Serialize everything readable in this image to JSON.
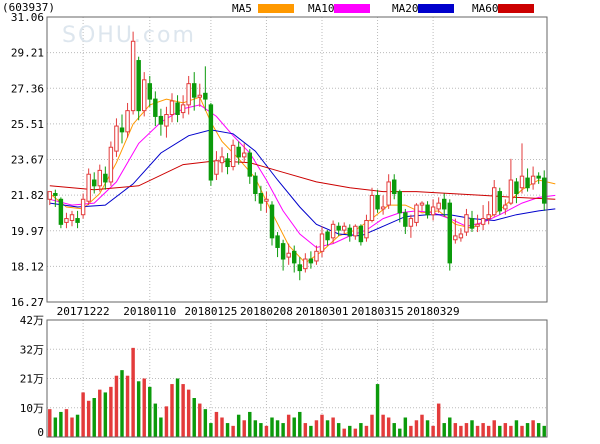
{
  "chart_data": {
    "type": "candlestick",
    "code_label": "(603937)",
    "watermark": "SOHU.com",
    "legend": [
      {
        "name": "MA5",
        "color": "#ff9900"
      },
      {
        "name": "MA10",
        "color": "#ff00ff"
      },
      {
        "name": "MA20",
        "color": "#0000cc"
      },
      {
        "name": "MA60",
        "color": "#cc0000"
      }
    ],
    "colors": {
      "up": "#e33b3b",
      "down": "#0b9a0b"
    },
    "price_ticks": [
      "31.06",
      "29.21",
      "27.36",
      "25.51",
      "23.67",
      "21.82",
      "19.97",
      "18.12",
      "16.27"
    ],
    "ylim": [
      16.27,
      31.06
    ],
    "x_ticks": [
      {
        "label": "20171222",
        "index": 6
      },
      {
        "label": "20180110",
        "index": 18
      },
      {
        "label": "20180125",
        "index": 29
      },
      {
        "label": "20180208",
        "index": 39
      },
      {
        "label": "20180301",
        "index": 49
      },
      {
        "label": "20180315",
        "index": 59
      },
      {
        "label": "20180329",
        "index": 69
      }
    ],
    "volume_ticks": [
      "42万",
      "32万",
      "21万",
      "10万",
      "0"
    ],
    "volume_max": 42,
    "candles": [
      [
        21.6,
        22.0,
        21.3,
        21.9
      ],
      [
        21.9,
        21.8,
        21.2,
        22.1
      ],
      [
        21.6,
        20.3,
        20.1,
        21.7
      ],
      [
        20.4,
        20.6,
        20.1,
        20.9
      ],
      [
        20.5,
        20.8,
        20.2,
        21.0
      ],
      [
        20.6,
        20.4,
        20.1,
        21.0
      ],
      [
        20.8,
        21.6,
        20.6,
        21.9
      ],
      [
        21.5,
        22.9,
        21.3,
        23.2
      ],
      [
        22.6,
        22.3,
        21.9,
        23.0
      ],
      [
        22.3,
        23.1,
        22.0,
        23.4
      ],
      [
        22.9,
        22.5,
        22.1,
        23.3
      ],
      [
        22.5,
        24.3,
        22.3,
        24.6
      ],
      [
        24.1,
        25.4,
        23.8,
        25.8
      ],
      [
        25.3,
        25.1,
        24.5,
        26.0
      ],
      [
        25.1,
        26.2,
        24.8,
        26.6
      ],
      [
        26.2,
        29.8,
        26.0,
        30.3
      ],
      [
        28.8,
        26.2,
        25.7,
        29.0
      ],
      [
        26.2,
        27.8,
        25.9,
        28.2
      ],
      [
        27.6,
        26.8,
        26.4,
        28.0
      ],
      [
        26.8,
        25.9,
        25.4,
        27.2
      ],
      [
        25.9,
        25.5,
        24.9,
        26.3
      ],
      [
        25.4,
        26.0,
        24.8,
        26.4
      ],
      [
        26.0,
        26.7,
        25.6,
        27.1
      ],
      [
        26.6,
        26.0,
        25.6,
        27.0
      ],
      [
        26.1,
        26.5,
        25.8,
        27.0
      ],
      [
        26.5,
        27.6,
        26.0,
        28.0
      ],
      [
        27.6,
        26.9,
        26.2,
        28.2
      ],
      [
        26.9,
        27.0,
        26.4,
        27.6
      ],
      [
        27.1,
        26.8,
        26.2,
        28.5
      ],
      [
        26.5,
        22.6,
        22.3,
        26.6
      ],
      [
        22.9,
        23.6,
        22.6,
        24.1
      ],
      [
        23.5,
        23.8,
        23.0,
        24.3
      ],
      [
        23.7,
        23.3,
        22.9,
        24.0
      ],
      [
        23.3,
        24.4,
        23.1,
        24.7
      ],
      [
        24.3,
        23.8,
        23.4,
        24.6
      ],
      [
        23.8,
        24.0,
        23.5,
        24.5
      ],
      [
        24.0,
        22.8,
        22.4,
        24.2
      ],
      [
        22.8,
        21.9,
        21.5,
        23.0
      ],
      [
        21.9,
        21.4,
        21.0,
        22.3
      ],
      [
        21.5,
        21.6,
        20.9,
        22.0
      ],
      [
        21.3,
        19.6,
        19.2,
        21.5
      ],
      [
        19.7,
        19.1,
        18.6,
        19.9
      ],
      [
        19.3,
        18.5,
        17.9,
        19.5
      ],
      [
        18.6,
        18.8,
        18.2,
        19.3
      ],
      [
        18.9,
        18.3,
        17.8,
        19.2
      ],
      [
        18.2,
        17.9,
        17.4,
        18.6
      ],
      [
        18.0,
        18.5,
        17.8,
        18.8
      ],
      [
        18.5,
        18.3,
        18.0,
        18.9
      ],
      [
        18.4,
        18.9,
        18.2,
        19.2
      ],
      [
        18.9,
        19.8,
        18.6,
        20.2
      ],
      [
        19.9,
        19.5,
        19.2,
        20.0
      ],
      [
        19.6,
        20.3,
        19.3,
        20.5
      ],
      [
        20.2,
        20.0,
        19.7,
        20.4
      ],
      [
        20.0,
        20.2,
        19.8,
        20.4
      ],
      [
        20.1,
        19.7,
        19.4,
        20.3
      ],
      [
        19.7,
        20.2,
        19.5,
        20.3
      ],
      [
        20.2,
        19.4,
        19.2,
        20.3
      ],
      [
        19.6,
        20.5,
        19.4,
        20.8
      ],
      [
        20.5,
        21.8,
        20.4,
        22.2
      ],
      [
        21.8,
        21.1,
        20.9,
        22.1
      ],
      [
        21.1,
        21.2,
        20.8,
        21.8
      ],
      [
        21.3,
        22.5,
        21.1,
        22.9
      ],
      [
        22.6,
        21.9,
        21.6,
        22.9
      ],
      [
        22.0,
        20.9,
        20.4,
        22.1
      ],
      [
        20.9,
        20.2,
        19.8,
        21.1
      ],
      [
        20.2,
        20.6,
        19.6,
        20.8
      ],
      [
        20.4,
        21.3,
        20.2,
        21.4
      ],
      [
        21.3,
        21.4,
        21.0,
        21.5
      ],
      [
        21.3,
        20.8,
        20.6,
        21.5
      ],
      [
        20.8,
        21.2,
        20.5,
        21.6
      ],
      [
        21.1,
        21.4,
        20.9,
        21.7
      ],
      [
        21.6,
        21.1,
        20.7,
        21.9
      ],
      [
        21.4,
        18.3,
        17.9,
        21.6
      ],
      [
        19.5,
        19.7,
        19.3,
        20.6
      ],
      [
        19.6,
        19.8,
        19.4,
        20.1
      ],
      [
        19.9,
        20.8,
        19.7,
        21.1
      ],
      [
        20.6,
        20.1,
        19.9,
        21.0
      ],
      [
        20.2,
        20.3,
        19.9,
        20.8
      ],
      [
        20.3,
        20.6,
        20.0,
        21.3
      ],
      [
        20.6,
        20.8,
        20.3,
        21.5
      ],
      [
        20.8,
        22.2,
        20.7,
        22.6
      ],
      [
        22.0,
        21.0,
        20.8,
        22.2
      ],
      [
        21.1,
        21.3,
        20.8,
        21.6
      ],
      [
        21.4,
        22.6,
        21.3,
        23.7
      ],
      [
        22.5,
        21.9,
        21.4,
        22.7
      ],
      [
        22.2,
        22.8,
        21.9,
        24.5
      ],
      [
        22.7,
        22.2,
        22.0,
        23.2
      ],
      [
        22.4,
        22.8,
        22.1,
        23.3
      ],
      [
        22.8,
        22.7,
        22.4,
        23.0
      ],
      [
        22.7,
        21.4,
        21.0,
        23.1
      ]
    ],
    "volumes": [
      10,
      7,
      9,
      10,
      7,
      8,
      16,
      13,
      14,
      17,
      16,
      18,
      22,
      24,
      22,
      32,
      20,
      21,
      18,
      12,
      7,
      11,
      19,
      21,
      19,
      17,
      14,
      12,
      10,
      5,
      9,
      7,
      5,
      4,
      8,
      6,
      9,
      6,
      5,
      4,
      7,
      6,
      5,
      8,
      7,
      9,
      5,
      4,
      6,
      8,
      6,
      7,
      5,
      3,
      4,
      3,
      5,
      4,
      8,
      19,
      8,
      7,
      5,
      3,
      7,
      4,
      6,
      8,
      6,
      4,
      12,
      5,
      7,
      5,
      4,
      5,
      6,
      4,
      5,
      4,
      6,
      4,
      5,
      4,
      6,
      4,
      5,
      6,
      5,
      4
    ],
    "ma5": [
      [
        0,
        21.9
      ],
      [
        3,
        21.2
      ],
      [
        6,
        21.1
      ],
      [
        9,
        21.9
      ],
      [
        12,
        23.5
      ],
      [
        15,
        25.5
      ],
      [
        18,
        26.5
      ],
      [
        21,
        26.8
      ],
      [
        24,
        26.6
      ],
      [
        27,
        26.9
      ],
      [
        29,
        25.6
      ],
      [
        31,
        24.6
      ],
      [
        34,
        23.7
      ],
      [
        37,
        22.7
      ],
      [
        40,
        20.9
      ],
      [
        43,
        19.2
      ],
      [
        46,
        18.3
      ],
      [
        49,
        18.9
      ],
      [
        52,
        19.7
      ],
      [
        55,
        20.0
      ],
      [
        58,
        20.6
      ],
      [
        61,
        21.3
      ],
      [
        64,
        21.3
      ],
      [
        67,
        20.9
      ],
      [
        70,
        21.0
      ],
      [
        73,
        20.3
      ],
      [
        76,
        20.1
      ],
      [
        79,
        20.6
      ],
      [
        82,
        21.3
      ],
      [
        85,
        22.1
      ],
      [
        88,
        22.6
      ],
      [
        91,
        22.4
      ]
    ],
    "ma10": [
      [
        0,
        21.6
      ],
      [
        4,
        21.3
      ],
      [
        8,
        21.4
      ],
      [
        12,
        22.5
      ],
      [
        16,
        24.5
      ],
      [
        20,
        25.6
      ],
      [
        24,
        26.3
      ],
      [
        27,
        26.5
      ],
      [
        30,
        25.9
      ],
      [
        33,
        24.9
      ],
      [
        36,
        24.0
      ],
      [
        39,
        22.6
      ],
      [
        42,
        21.0
      ],
      [
        45,
        19.8
      ],
      [
        48,
        19.1
      ],
      [
        51,
        19.3
      ],
      [
        54,
        19.7
      ],
      [
        57,
        20.0
      ],
      [
        60,
        20.6
      ],
      [
        63,
        20.9
      ],
      [
        66,
        21.0
      ],
      [
        69,
        20.9
      ],
      [
        72,
        20.6
      ],
      [
        75,
        20.2
      ],
      [
        78,
        20.4
      ],
      [
        81,
        20.8
      ],
      [
        85,
        21.4
      ],
      [
        88,
        21.7
      ],
      [
        91,
        21.8
      ]
    ],
    "ma20": [
      [
        0,
        21.4
      ],
      [
        5,
        21.2
      ],
      [
        10,
        21.3
      ],
      [
        15,
        22.4
      ],
      [
        20,
        24.0
      ],
      [
        25,
        24.9
      ],
      [
        29,
        25.2
      ],
      [
        33,
        25.0
      ],
      [
        37,
        24.1
      ],
      [
        41,
        22.6
      ],
      [
        45,
        21.2
      ],
      [
        48,
        20.3
      ],
      [
        52,
        19.8
      ],
      [
        56,
        19.7
      ],
      [
        60,
        20.2
      ],
      [
        64,
        20.7
      ],
      [
        68,
        20.8
      ],
      [
        72,
        20.8
      ],
      [
        76,
        20.6
      ],
      [
        80,
        20.5
      ],
      [
        84,
        20.8
      ],
      [
        88,
        21.0
      ],
      [
        91,
        21.1
      ]
    ],
    "ma60": [
      [
        0,
        22.3
      ],
      [
        8,
        22.1
      ],
      [
        16,
        22.3
      ],
      [
        24,
        23.4
      ],
      [
        30,
        23.6
      ],
      [
        36,
        23.5
      ],
      [
        42,
        23.0
      ],
      [
        48,
        22.5
      ],
      [
        54,
        22.2
      ],
      [
        60,
        22.0
      ],
      [
        66,
        22.0
      ],
      [
        72,
        21.9
      ],
      [
        78,
        21.8
      ],
      [
        84,
        21.7
      ],
      [
        91,
        21.6
      ]
    ]
  }
}
